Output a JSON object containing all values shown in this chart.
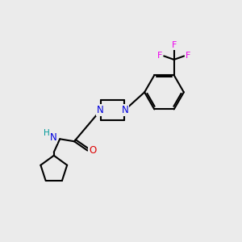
{
  "background_color": "#ebebeb",
  "atom_colors": {
    "N": "#0000dd",
    "O": "#dd0000",
    "F": "#ee00ee",
    "H": "#009999",
    "C": "#000000"
  },
  "bond_color": "#000000",
  "bond_width": 1.5,
  "figsize": [
    3.0,
    3.0
  ],
  "dpi": 100
}
